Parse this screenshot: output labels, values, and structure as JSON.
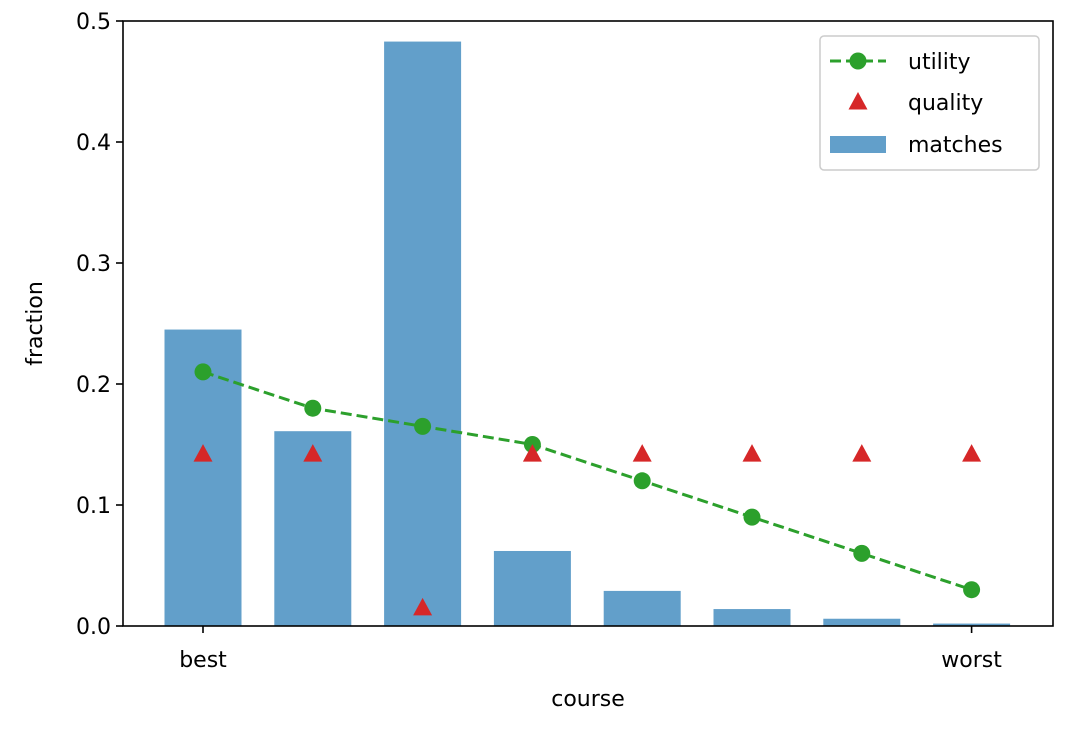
{
  "chart_data": {
    "type": "bar",
    "x": [
      0,
      1,
      2,
      3,
      4,
      5,
      6,
      7
    ],
    "xlabel": "course",
    "ylabel": "fraction",
    "xticks": [
      {
        "x": 0,
        "label": "best"
      },
      {
        "x": 7,
        "label": "worst"
      }
    ],
    "ylim": [
      0,
      0.5
    ],
    "yticks": [
      {
        "value": 0.0,
        "label": "0.0"
      },
      {
        "value": 0.1,
        "label": "0.1"
      },
      {
        "value": 0.2,
        "label": "0.2"
      },
      {
        "value": 0.3,
        "label": "0.3"
      },
      {
        "value": 0.4,
        "label": "0.4"
      },
      {
        "value": 0.5,
        "label": "0.5"
      }
    ],
    "grid": false,
    "legend_position": "top-right",
    "series": [
      {
        "name": "utility",
        "kind": "line-markers",
        "style": "dashed",
        "marker": "circle",
        "color": "#2ca02c",
        "values": [
          0.21,
          0.18,
          0.165,
          0.15,
          0.12,
          0.09,
          0.06,
          0.03
        ]
      },
      {
        "name": "quality",
        "kind": "markers",
        "marker": "triangle",
        "color": "#d62728",
        "values": [
          0.142,
          0.142,
          0.015,
          0.142,
          0.142,
          0.142,
          0.142,
          0.142
        ]
      },
      {
        "name": "matches",
        "kind": "bar",
        "color": "#629fca",
        "values": [
          0.245,
          0.161,
          0.483,
          0.062,
          0.029,
          0.014,
          0.006,
          0.002
        ]
      }
    ]
  }
}
